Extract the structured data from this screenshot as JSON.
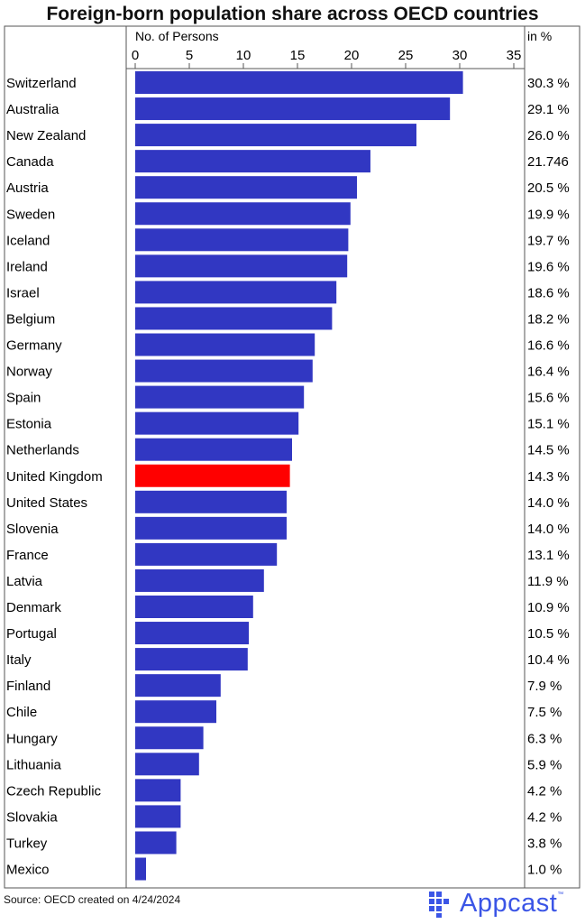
{
  "title": "Foreign-born population share across OECD countries",
  "footer": {
    "source": "Source: OECD created on 4/24/2024",
    "logo": "Appcast",
    "logo_mark": "™"
  },
  "colors": {
    "bar": "#3137c2",
    "highlight": "#ff0000",
    "grid": "#bdbdbd",
    "logo": "#3b55e6"
  },
  "chart_data": {
    "type": "bar",
    "orientation": "horizontal",
    "title": "Foreign-born population share across OECD countries",
    "xlabel": "No. of Persons",
    "value_column_label": "in %",
    "xlim": [
      0,
      35
    ],
    "xticks": [
      0,
      5,
      10,
      15,
      20,
      25,
      30,
      35
    ],
    "grid": false,
    "highlight_category": "United Kingdom",
    "categories": [
      "Switzerland",
      "Australia",
      "New Zealand",
      "Canada",
      "Austria",
      "Sweden",
      "Iceland",
      "Ireland",
      "Israel",
      "Belgium",
      "Germany",
      "Norway",
      "Spain",
      "Estonia",
      "Netherlands",
      "United Kingdom",
      "United States",
      "Slovenia",
      "France",
      "Latvia",
      "Denmark",
      "Portugal",
      "Italy",
      "Finland",
      "Chile",
      "Hungary",
      "Lithuania",
      "Czech Republic",
      "Slovakia",
      "Turkey",
      "Mexico"
    ],
    "values": [
      30.3,
      29.1,
      26.0,
      21.746,
      20.5,
      19.9,
      19.7,
      19.6,
      18.6,
      18.2,
      16.6,
      16.4,
      15.6,
      15.1,
      14.5,
      14.3,
      14.0,
      14.0,
      13.1,
      11.9,
      10.9,
      10.5,
      10.4,
      7.9,
      7.5,
      6.3,
      5.9,
      4.2,
      4.2,
      3.8,
      1.0
    ],
    "value_labels": [
      "30.3 %",
      "29.1 %",
      "26.0 %",
      "21.746",
      "20.5 %",
      "19.9 %",
      "19.7 %",
      "19.6 %",
      "18.6 %",
      "18.2 %",
      "16.6 %",
      "16.4 %",
      "15.6 %",
      "15.1 %",
      "14.5 %",
      "14.3 %",
      "14.0 %",
      "14.0 %",
      "13.1 %",
      "11.9 %",
      "10.9 %",
      "10.5 %",
      "10.4 %",
      "7.9 %",
      "7.5 %",
      "6.3 %",
      "5.9 %",
      "4.2 %",
      "4.2 %",
      "3.8 %",
      "1.0 %"
    ]
  }
}
